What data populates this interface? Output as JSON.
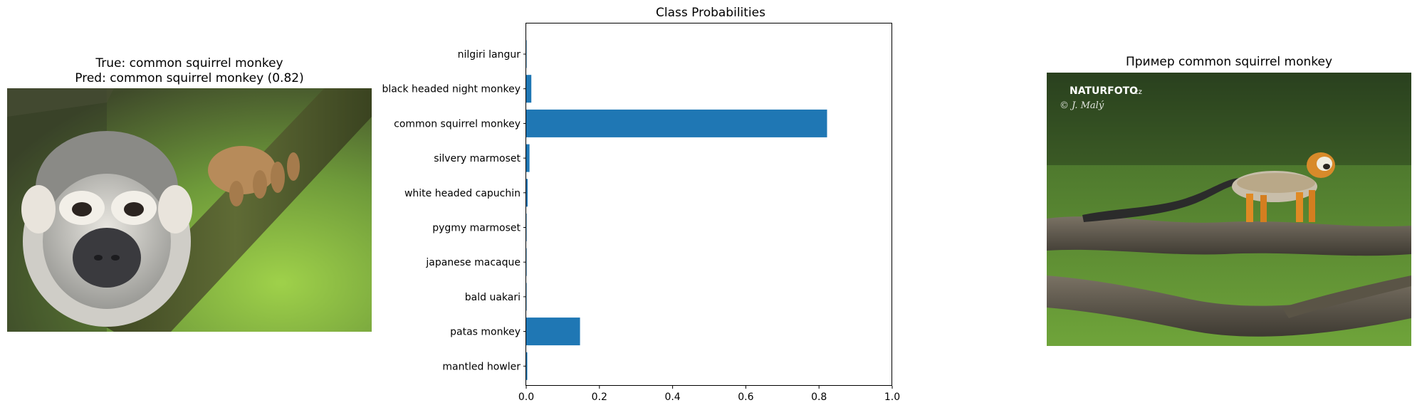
{
  "left_panel": {
    "true_label": "True: common squirrel monkey",
    "pred_label": "Pred: common squirrel monkey (0.82)",
    "image_subject": "squirrel monkey close-up portrait gripping a mossy branch"
  },
  "right_panel": {
    "title": "Пример common squirrel monkey",
    "watermark_brand": "NATURFOTO",
    "watermark_domain": ".cz",
    "watermark_author": "© J. Malý",
    "image_subject": "squirrel monkey walking along a log in grass"
  },
  "colors": {
    "bar": "#1f77b4",
    "axis": "#000000",
    "foliage": "#7fb83a",
    "branch": "#4f5a2e"
  },
  "chart_data": {
    "type": "bar",
    "orientation": "horizontal",
    "title": "Class Probabilities",
    "xlabel": "",
    "ylabel": "",
    "xlim": [
      0,
      1.0
    ],
    "xticks": [
      "0.0",
      "0.2",
      "0.4",
      "0.6",
      "0.8",
      "1.0"
    ],
    "categories": [
      "nilgiri langur",
      "black headed night monkey",
      "common squirrel monkey",
      "silvery marmoset",
      "white headed capuchin",
      "pygmy marmoset",
      "japanese macaque",
      "bald uakari",
      "patas monkey",
      "mantled howler"
    ],
    "values": [
      0.001,
      0.014,
      0.822,
      0.009,
      0.004,
      0.001,
      0.001,
      0.001,
      0.147,
      0.003
    ],
    "grid": false,
    "legend": "none"
  }
}
